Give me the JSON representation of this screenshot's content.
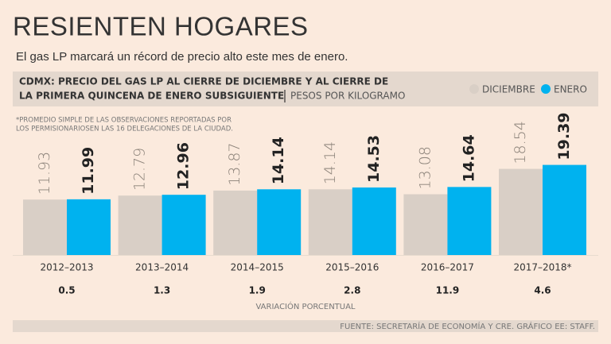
{
  "chart_data": {
    "type": "bar",
    "title": "RESIENTEN HOGARES",
    "subtitle": "El gas LP marcará un récord de precio alto este mes de enero.",
    "header_lines": [
      "CDMX: PRECIO DEL GAS LP AL CIERRE DE DICIEMBRE Y AL CIERRE DE",
      "LA PRIMERA QUINCENA DE ENERO SUBSIGUIENTE"
    ],
    "unit": "PESOS POR KILOGRAMO",
    "notes": [
      "*PROMEDIO SIMPLE DE LAS OBSERVACIONES REPORTADAS POR",
      "LOS PERMISIONARIOSEN LAS 16 DELEGACIONES DE LA CIUDAD."
    ],
    "categories": [
      "2012–2013",
      "2013–2014",
      "2014–2015",
      "2015–2016",
      "2016–2017",
      "2017–2018*"
    ],
    "series": [
      {
        "name": "DICIEMBRE",
        "color": "#d9cfc6",
        "values": [
          11.93,
          12.79,
          13.87,
          14.14,
          13.08,
          18.54
        ]
      },
      {
        "name": "ENERO",
        "color": "#00b2ef",
        "values": [
          11.99,
          12.96,
          14.14,
          14.53,
          14.64,
          19.39
        ]
      }
    ],
    "variation": {
      "label": "VARIACIÓN PORCENTUAL",
      "values": [
        0.5,
        1.3,
        1.9,
        2.8,
        11.9,
        4.6
      ]
    },
    "source": "FUENTE: SECRETARÍA DE ECONOMÍA Y CRE. GRÁFICO EE: STAFF."
  }
}
